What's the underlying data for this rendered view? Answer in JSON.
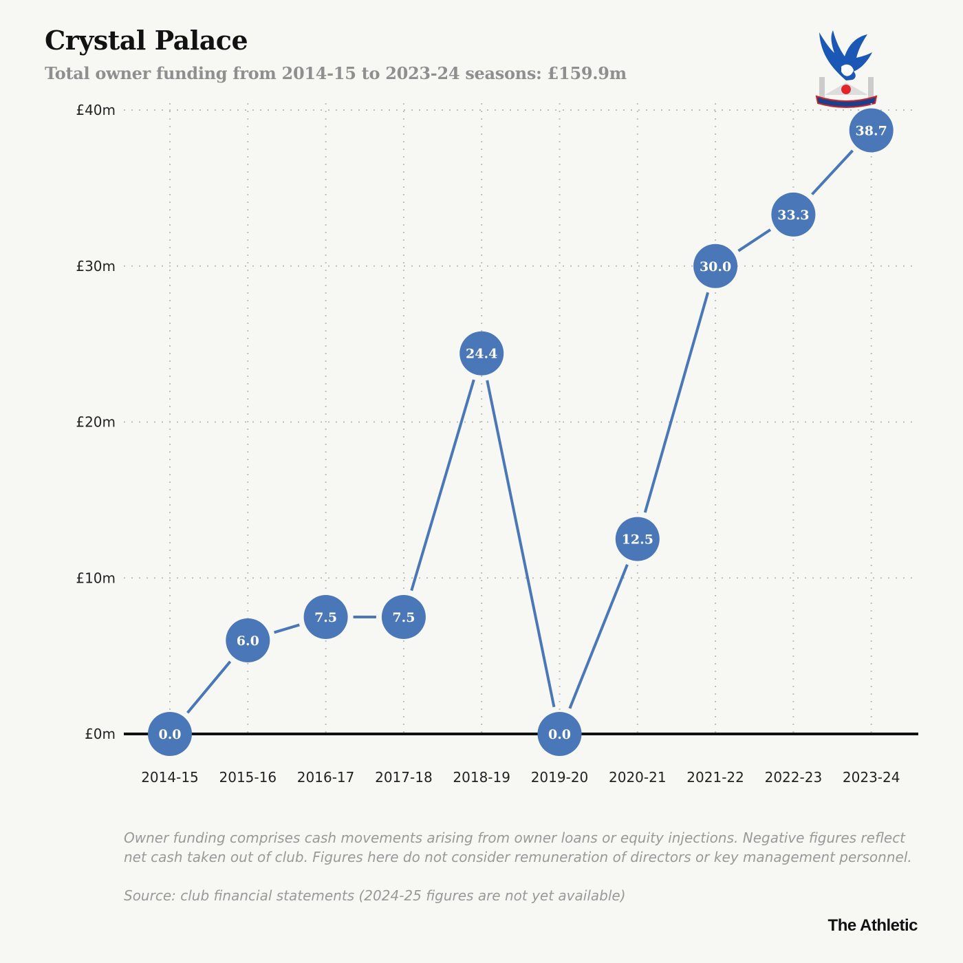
{
  "header": {
    "title": "Crystal Palace",
    "subtitle": "Total owner funding from 2014-15 to 2023-24 seasons: £159.9m"
  },
  "logo": {
    "text": "CRYSTAL PALACE F.C."
  },
  "chart_data": {
    "type": "line",
    "title": "Crystal Palace",
    "subtitle": "Total owner funding from 2014-15 to 2023-24 seasons: £159.9m",
    "xlabel": "",
    "ylabel": "",
    "categories": [
      "2014-15",
      "2015-16",
      "2016-17",
      "2017-18",
      "2018-19",
      "2019-20",
      "2020-21",
      "2021-22",
      "2022-23",
      "2023-24"
    ],
    "values": [
      0.0,
      6.0,
      7.5,
      7.5,
      24.4,
      0.0,
      12.5,
      30.0,
      33.3,
      38.7
    ],
    "data_labels": [
      "0.0",
      "6.0",
      "7.5",
      "7.5",
      "24.4",
      "0.0",
      "12.5",
      "30.0",
      "33.3",
      "38.7"
    ],
    "ylim": [
      0,
      40
    ],
    "yticks": [
      0,
      10,
      20,
      30,
      40
    ],
    "ytick_labels": [
      "£0m",
      "£10m",
      "£20m",
      "£30m",
      "£40m"
    ],
    "grid": true,
    "colors": {
      "series": "#4a77b7",
      "zero_line": "#111111",
      "grid": "#bdbdbd"
    }
  },
  "footer": {
    "note": "Owner funding comprises cash movements arising from owner loans or equity injections. Negative figures reflect net cash taken out of club. Figures here do not consider remuneration of directors or key management personnel.",
    "source": "Source: club financial statements (2024-25 figures are not yet available)",
    "brand": "The Athletic"
  }
}
